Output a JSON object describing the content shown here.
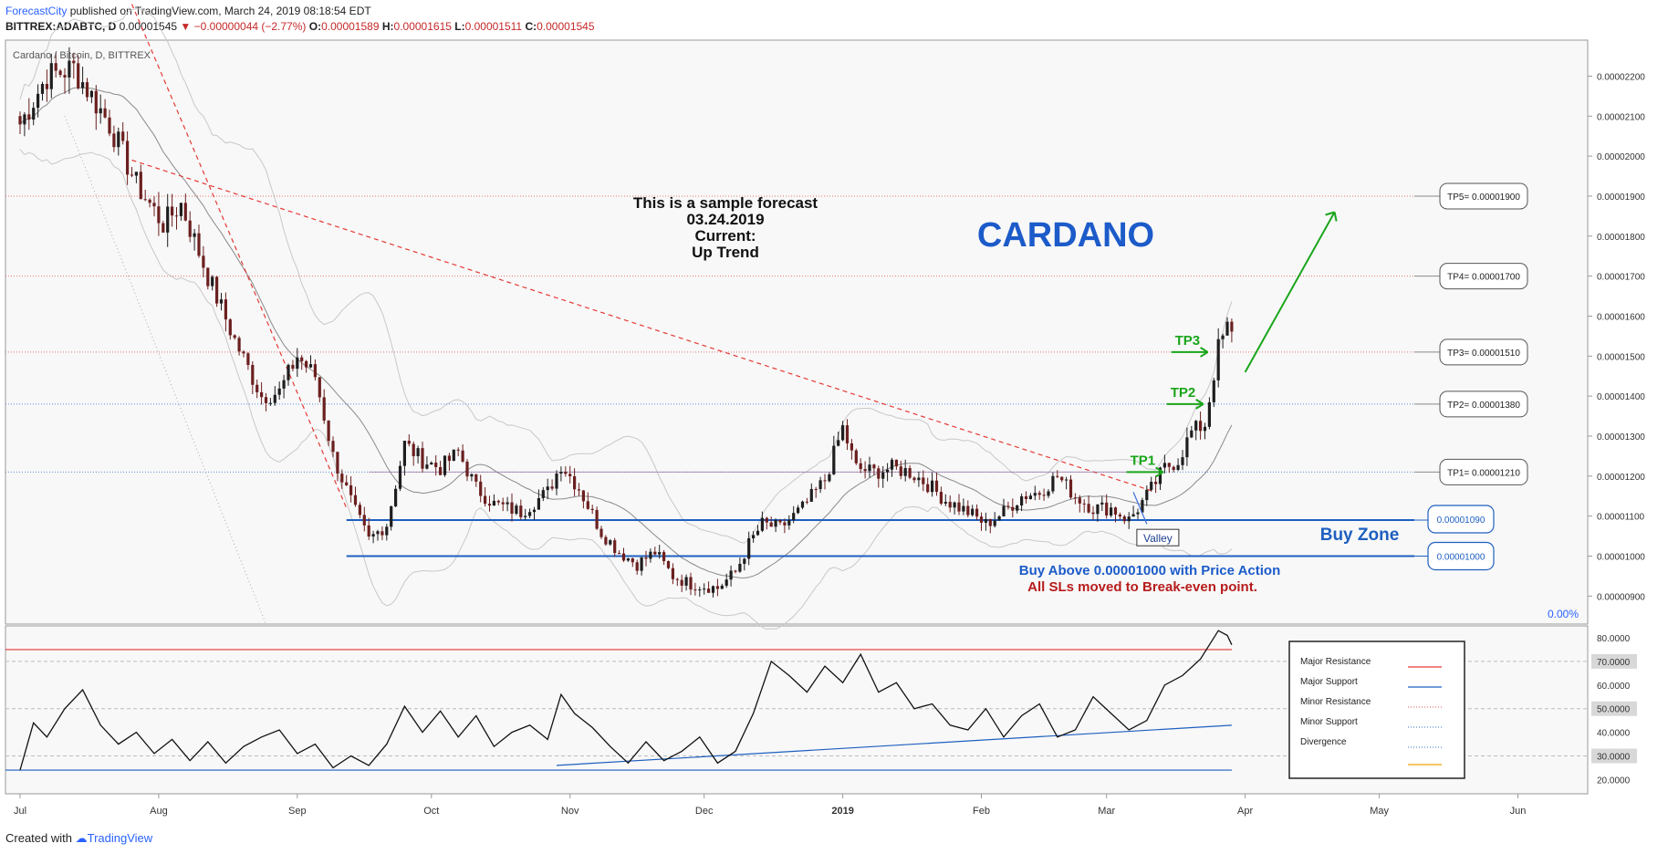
{
  "header": {
    "publisher": "ForecastCity",
    "published_text": "published on TradingView.com, March 24, 2019 08:18:54 EDT",
    "symbol": "BITTREX:ADABTC, D",
    "last": "0.00001545",
    "change": "▼ −0.00000044 (−2.77%)",
    "open_label": "O:",
    "open": "0.00001589",
    "high_label": "H:",
    "high": "0.00001615",
    "low_label": "L:",
    "low": "0.00001511",
    "close_label": "C:",
    "close": "0.00001545"
  },
  "footer": {
    "created_with": "Created with",
    "brand": "TradingView"
  },
  "colors": {
    "up": "#1e1e1e",
    "down": "#6b1f1f",
    "minor_resistance": "#e57373",
    "minor_support": "#5c8fd6",
    "major_resistance": "#e53935",
    "major_support": "#1e5fc0",
    "green": "#1aa51a",
    "cardano_blue": "#1c5bc9"
  },
  "chart_data": [
    {
      "type": "candlestick",
      "title": "Cardano / Bitcoin, D, BITTREX",
      "x_ticks": [
        "Jul",
        "Aug",
        "Sep",
        "Oct",
        "Nov",
        "Dec",
        "2019",
        "Feb",
        "Mar",
        "Apr",
        "May",
        "Jun"
      ],
      "ylim": [
        8.3e-06,
        2.29e-05
      ],
      "y_ticks": [
        "0.00002200",
        "0.00002100",
        "0.00002000",
        "0.00001900",
        "0.00001800",
        "0.00001700",
        "0.00001600",
        "0.00001500",
        "0.00001400",
        "0.00001300",
        "0.00001200",
        "0.00001100",
        "0.00001000",
        "0.00000900"
      ],
      "close_path": [
        [
          0,
          2.08e-05
        ],
        [
          6,
          2.2e-05
        ],
        [
          12,
          2.22e-05
        ],
        [
          20,
          2.08e-05
        ],
        [
          26,
          1.93e-05
        ],
        [
          32,
          1.83e-05
        ],
        [
          36,
          1.88e-05
        ],
        [
          42,
          1.7e-05
        ],
        [
          48,
          1.54e-05
        ],
        [
          54,
          1.4e-05
        ],
        [
          58,
          1.41e-05
        ],
        [
          62,
          1.5e-05
        ],
        [
          66,
          1.45e-05
        ],
        [
          70,
          1.25e-05
        ],
        [
          75,
          1.11e-05
        ],
        [
          78,
          1.04e-05
        ],
        [
          82,
          1.08e-05
        ],
        [
          86,
          1.28e-05
        ],
        [
          90,
          1.24e-05
        ],
        [
          94,
          1.22e-05
        ],
        [
          98,
          1.26e-05
        ],
        [
          102,
          1.17e-05
        ],
        [
          106,
          1.13e-05
        ],
        [
          112,
          1.11e-05
        ],
        [
          118,
          1.16e-05
        ],
        [
          121,
          1.23e-05
        ],
        [
          125,
          1.17e-05
        ],
        [
          130,
          1.06e-05
        ],
        [
          134,
          1.01e-05
        ],
        [
          138,
          9.8e-06
        ],
        [
          142,
          1.01e-05
        ],
        [
          146,
          9.5e-06
        ],
        [
          150,
          9.3e-06
        ],
        [
          156,
          9.2e-06
        ],
        [
          160,
          9.6e-06
        ],
        [
          163,
          1.03e-05
        ],
        [
          166,
          1.08e-05
        ],
        [
          170,
          1.07e-05
        ],
        [
          175,
          1.12e-05
        ],
        [
          180,
          1.19e-05
        ],
        [
          184,
          1.32e-05
        ],
        [
          187,
          1.22e-05
        ],
        [
          191,
          1.21e-05
        ],
        [
          195,
          1.22e-05
        ],
        [
          199,
          1.21e-05
        ],
        [
          203,
          1.18e-05
        ],
        [
          207,
          1.14e-05
        ],
        [
          212,
          1.11e-05
        ],
        [
          216,
          1.08e-05
        ],
        [
          220,
          1.11e-05
        ],
        [
          224,
          1.15e-05
        ],
        [
          228,
          1.16e-05
        ],
        [
          232,
          1.2e-05
        ],
        [
          236,
          1.15e-05
        ],
        [
          240,
          1.12e-05
        ],
        [
          244,
          1.12e-05
        ],
        [
          248,
          1.09e-05
        ],
        [
          252,
          1.15e-05
        ],
        [
          256,
          1.22e-05
        ],
        [
          259,
          1.24e-05
        ],
        [
          262,
          1.31e-05
        ],
        [
          265,
          1.33e-05
        ],
        [
          268,
          1.52e-05
        ],
        [
          270,
          1.57e-05
        ],
        [
          271,
          1.55e-05
        ]
      ],
      "levels": [
        {
          "label": "TP5= 0.00001900",
          "value": 1.9e-05,
          "kind": "minor_resistance"
        },
        {
          "label": "TP4= 0.00001700",
          "value": 1.7e-05,
          "kind": "minor_resistance"
        },
        {
          "label": "TP3= 0.00001510",
          "value": 1.51e-05,
          "kind": "minor_resistance"
        },
        {
          "label": "TP2= 0.00001380",
          "value": 1.38e-05,
          "kind": "minor_support"
        },
        {
          "label": "TP1= 0.00001210",
          "value": 1.21e-05,
          "kind": "minor_support"
        }
      ],
      "buy_zone": {
        "label": "Buy Zone",
        "top": "0.00001090",
        "bottom": "0.00001000",
        "top_value": 1.09e-05,
        "bottom_value": 1e-05
      },
      "fib_label": "0.00%",
      "targets": [
        "TP1",
        "TP2",
        "TP3"
      ],
      "valley_label": "Valley",
      "annotations": {
        "sample_lines": [
          "This is a sample forecast",
          "03.24.2019",
          "Current:",
          "Up Trend"
        ],
        "coin": "CARDANO",
        "buy_text": "Buy Above 0.00001000 with Price Action",
        "sl_text": "All SLs moved to Break-even point."
      }
    },
    {
      "type": "line",
      "ylim": [
        14,
        85
      ],
      "y_ticks": [
        "80.0000",
        "70.0000",
        "60.0000",
        "50.0000",
        "40.0000",
        "30.0000",
        "20.0000"
      ],
      "highlighted_ticks": [
        "70.0000",
        "50.0000",
        "30.0000"
      ],
      "x": [
        0,
        3,
        6,
        10,
        14,
        18,
        22,
        26,
        30,
        34,
        38,
        42,
        46,
        50,
        54,
        58,
        62,
        66,
        70,
        74,
        78,
        82,
        86,
        90,
        94,
        98,
        102,
        106,
        110,
        114,
        118,
        121,
        124,
        128,
        132,
        136,
        140,
        144,
        148,
        152,
        156,
        160,
        164,
        168,
        172,
        176,
        180,
        184,
        188,
        192,
        196,
        200,
        204,
        208,
        212,
        216,
        220,
        224,
        228,
        232,
        236,
        240,
        244,
        248,
        252,
        256,
        260,
        264,
        268,
        270,
        271
      ],
      "y": [
        24,
        44,
        38,
        50,
        58,
        43,
        35,
        40,
        31,
        37,
        28,
        36,
        27,
        34,
        38,
        41,
        31,
        35,
        25,
        30,
        26,
        35,
        51,
        40,
        49,
        38,
        47,
        34,
        40,
        43,
        37,
        56,
        48,
        42,
        34,
        27,
        36,
        28,
        32,
        38,
        27,
        32,
        48,
        70,
        64,
        57,
        68,
        61,
        73,
        57,
        61,
        50,
        52,
        43,
        41,
        50,
        38,
        47,
        52,
        38,
        41,
        55,
        48,
        41,
        45,
        60,
        64,
        71,
        83,
        81,
        77
      ],
      "support_line": {
        "from": [
          120,
          26
        ],
        "to": [
          271,
          43
        ]
      },
      "legend": {
        "entries": [
          "Major Resistance",
          "Major Support",
          "Minor Resistance",
          "Minor Support",
          "Divergence"
        ]
      }
    }
  ]
}
